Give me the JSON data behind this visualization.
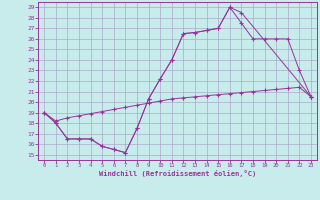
{
  "xlabel": "Windchill (Refroidissement éolien,°C)",
  "bg_color": "#c8ecec",
  "grid_color": "#aaaacc",
  "line_color": "#993399",
  "xlim_min": -0.5,
  "xlim_max": 23.5,
  "ylim_min": 14.5,
  "ylim_max": 29.5,
  "xticks": [
    0,
    1,
    2,
    3,
    4,
    5,
    6,
    7,
    8,
    9,
    10,
    11,
    12,
    13,
    14,
    15,
    16,
    17,
    18,
    19,
    20,
    21,
    22,
    23
  ],
  "yticks": [
    15,
    16,
    17,
    18,
    19,
    20,
    21,
    22,
    23,
    24,
    25,
    26,
    27,
    28,
    29
  ],
  "line1_x": [
    0,
    1,
    2,
    3,
    4,
    5,
    6,
    7,
    8,
    9,
    10,
    11,
    12,
    13,
    14,
    15,
    16,
    17,
    18,
    19,
    20,
    21,
    22,
    23
  ],
  "line1_y": [
    19,
    18,
    16.5,
    16.5,
    16.5,
    15.8,
    15.5,
    15.2,
    17.5,
    20.3,
    22.2,
    24.0,
    26.5,
    26.6,
    26.8,
    27.0,
    29.0,
    27.5,
    26.0,
    26.0,
    26.0,
    26.0,
    23.0,
    20.5
  ],
  "line2_x": [
    0,
    1,
    2,
    3,
    4,
    5,
    6,
    7,
    8,
    9,
    10,
    11,
    12,
    13,
    14,
    15,
    16,
    17,
    23
  ],
  "line2_y": [
    19,
    18,
    16.5,
    16.5,
    16.5,
    15.8,
    15.5,
    15.2,
    17.5,
    20.3,
    22.2,
    24.0,
    26.5,
    26.6,
    26.8,
    27.0,
    29.0,
    28.5,
    20.5
  ],
  "line3_x": [
    0,
    1,
    2,
    3,
    4,
    5,
    6,
    7,
    8,
    9,
    10,
    11,
    12,
    13,
    14,
    15,
    16,
    17,
    18,
    19,
    20,
    21,
    22,
    23
  ],
  "line3_y": [
    19,
    18.2,
    18.5,
    18.7,
    18.9,
    19.1,
    19.3,
    19.5,
    19.7,
    19.9,
    20.1,
    20.3,
    20.4,
    20.5,
    20.6,
    20.7,
    20.8,
    20.9,
    21.0,
    21.1,
    21.2,
    21.3,
    21.4,
    20.5
  ]
}
